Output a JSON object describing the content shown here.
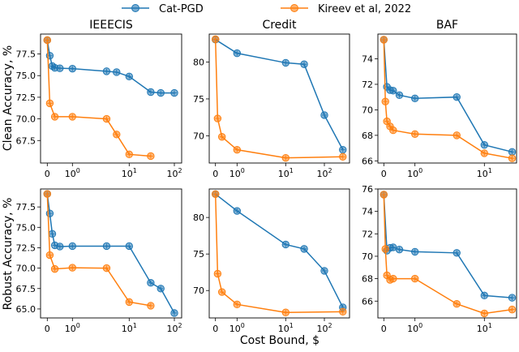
{
  "legend": {
    "placement": "top-center",
    "entries": [
      {
        "name": "Cat-PGD",
        "color": "#1f77b4"
      },
      {
        "name": "Kireev et al, 2022",
        "color": "#ff7f0e"
      }
    ]
  },
  "xlabel": "Cost Bound, $",
  "ylabels": {
    "clean": "Clean Accuracy, %",
    "robust": "Robust Accuracy, %"
  },
  "chart_data": [
    {
      "type": "line",
      "title": "IEEECIS",
      "row": "clean",
      "xscale": "symlog",
      "grid": false,
      "xticks": [
        0,
        1,
        10,
        100
      ],
      "xtick_labels": [
        "0",
        "10^0",
        "10^1",
        "10^2"
      ],
      "yticks": [
        67.5,
        70.0,
        72.5,
        75.0,
        77.5
      ],
      "ytick_labels": [
        "67.5",
        "70.0",
        "72.5",
        "75.0",
        "77.5"
      ],
      "ylim": [
        64.9,
        79.8
      ],
      "series": [
        {
          "name": "Cat-PGD",
          "x": [
            0,
            0.1,
            0.2,
            0.3,
            0.5,
            1,
            4,
            6,
            10,
            30,
            50,
            100
          ],
          "y": [
            79.1,
            77.3,
            76.1,
            75.9,
            75.85,
            75.8,
            75.5,
            75.4,
            74.9,
            73.1,
            73.0,
            73.0
          ]
        },
        {
          "name": "Kireev et al, 2022",
          "x": [
            0,
            0.1,
            0.3,
            1,
            4,
            6,
            10,
            30
          ],
          "y": [
            79.1,
            71.8,
            70.25,
            70.25,
            70.0,
            68.2,
            65.9,
            65.7
          ]
        }
      ]
    },
    {
      "type": "line",
      "title": "Credit",
      "row": "clean",
      "xscale": "symlog",
      "grid": false,
      "xticks": [
        0,
        1,
        10,
        100
      ],
      "xtick_labels": [
        "0",
        "10^0",
        "10^1",
        "10^2"
      ],
      "yticks": [
        70,
        75,
        80
      ],
      "ytick_labels": [
        "70",
        "75",
        "80"
      ],
      "ylim": [
        66.3,
        83.8
      ],
      "series": [
        {
          "name": "Cat-PGD",
          "x": [
            0,
            1,
            10,
            30,
            100,
            300
          ],
          "y": [
            83.05,
            81.2,
            79.9,
            79.7,
            72.8,
            68.1
          ]
        },
        {
          "name": "Kireev et al, 2022",
          "x": [
            0,
            0.1,
            0.3,
            1,
            10,
            300
          ],
          "y": [
            83.1,
            72.35,
            69.85,
            68.1,
            67.0,
            67.15
          ]
        }
      ]
    },
    {
      "type": "line",
      "title": "BAF",
      "row": "clean",
      "xscale": "symlog",
      "grid": false,
      "xticks": [
        0,
        1,
        10
      ],
      "xtick_labels": [
        "0",
        "10^0",
        "10^1"
      ],
      "yticks": [
        66,
        68,
        70,
        72,
        74
      ],
      "ytick_labels": [
        "66",
        "68",
        "70",
        "72",
        "74"
      ],
      "ylim": [
        65.83,
        75.94
      ],
      "series": [
        {
          "name": "Cat-PGD",
          "x": [
            0,
            0.1,
            0.2,
            0.3,
            0.5,
            1,
            4,
            10,
            25
          ],
          "y": [
            75.5,
            71.8,
            71.55,
            71.5,
            71.15,
            70.9,
            71.0,
            67.25,
            66.7
          ]
        },
        {
          "name": "Kireev et al, 2022",
          "x": [
            0,
            0.05,
            0.1,
            0.2,
            0.3,
            1,
            4,
            10,
            25
          ],
          "y": [
            75.5,
            70.65,
            69.1,
            68.7,
            68.4,
            68.1,
            68.0,
            66.6,
            66.2
          ]
        }
      ]
    },
    {
      "type": "line",
      "title": "",
      "row": "robust",
      "xscale": "symlog",
      "grid": false,
      "xticks": [
        0,
        1,
        10,
        100
      ],
      "xtick_labels": [
        "0",
        "10^0",
        "10^1",
        "10^2"
      ],
      "yticks": [
        65.0,
        67.5,
        70.0,
        72.5,
        75.0,
        77.5
      ],
      "ytick_labels": [
        "65.0",
        "67.5",
        "70.0",
        "72.5",
        "75.0",
        "77.5"
      ],
      "ylim": [
        63.9,
        79.7
      ],
      "series": [
        {
          "name": "Cat-PGD",
          "x": [
            0,
            0.1,
            0.2,
            0.3,
            0.5,
            1,
            4,
            10,
            30,
            50,
            100
          ],
          "y": [
            79.1,
            76.7,
            74.2,
            72.8,
            72.65,
            72.7,
            72.7,
            72.7,
            68.2,
            67.5,
            64.5
          ]
        },
        {
          "name": "Kireev et al, 2022",
          "x": [
            0,
            0.1,
            0.3,
            1,
            4,
            10,
            30
          ],
          "y": [
            79.1,
            71.6,
            69.9,
            70.05,
            70.0,
            65.85,
            65.4
          ]
        }
      ]
    },
    {
      "type": "line",
      "title": "",
      "row": "robust",
      "xscale": "symlog",
      "grid": false,
      "xticks": [
        0,
        1,
        10,
        100
      ],
      "xtick_labels": [
        "0",
        "10^0",
        "10^1",
        "10^2"
      ],
      "yticks": [
        70,
        75,
        80
      ],
      "ytick_labels": [
        "70",
        "75",
        "80"
      ],
      "ylim": [
        66.25,
        83.9
      ],
      "series": [
        {
          "name": "Cat-PGD",
          "x": [
            0,
            1,
            10,
            30,
            100,
            300
          ],
          "y": [
            83.2,
            80.9,
            76.3,
            75.7,
            72.7,
            67.7
          ]
        },
        {
          "name": "Kireev et al, 2022",
          "x": [
            0,
            0.1,
            0.3,
            1,
            10,
            300
          ],
          "y": [
            83.2,
            72.3,
            69.8,
            68.1,
            67.0,
            67.1
          ]
        }
      ]
    },
    {
      "type": "line",
      "title": "",
      "row": "robust",
      "xscale": "symlog",
      "grid": false,
      "xticks": [
        0,
        1,
        10
      ],
      "xtick_labels": [
        "0",
        "10^0",
        "10^1"
      ],
      "yticks": [
        66,
        68,
        70,
        72,
        74,
        76
      ],
      "ytick_labels": [
        "66",
        "68",
        "70",
        "72",
        "74",
        "76"
      ],
      "ylim": [
        64.5,
        76.0
      ],
      "series": [
        {
          "name": "Cat-PGD",
          "x": [
            0,
            0.1,
            0.2,
            0.3,
            0.5,
            1,
            4,
            10,
            25
          ],
          "y": [
            75.5,
            70.5,
            70.75,
            70.8,
            70.6,
            70.4,
            70.3,
            66.5,
            66.3
          ]
        },
        {
          "name": "Kireev et al, 2022",
          "x": [
            0,
            0.05,
            0.1,
            0.2,
            0.3,
            1,
            4,
            10,
            25
          ],
          "y": [
            75.5,
            70.65,
            68.3,
            67.9,
            68.0,
            68.0,
            65.75,
            64.9,
            65.25
          ]
        }
      ]
    }
  ]
}
